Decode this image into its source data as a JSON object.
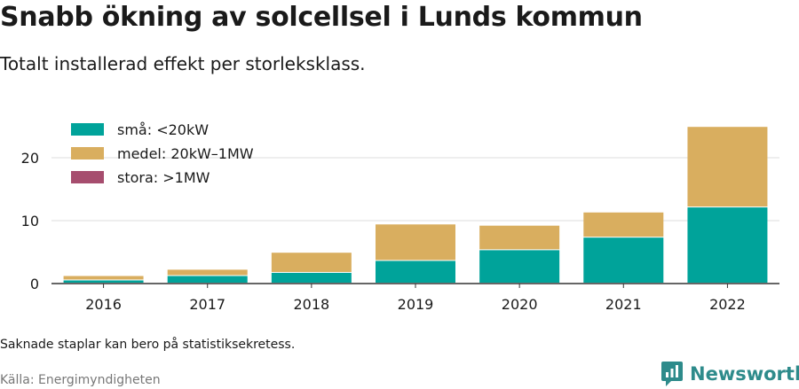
{
  "title": "Snabb ökning av solcellsel i Lunds kommun",
  "subtitle": "Totalt installerad effekt per storleksklass.",
  "note": "Saknade staplar kan bero på statistiksekretess.",
  "source": "Källa: Energimyndigheten",
  "brand": {
    "name": "Newsworthy",
    "icon": "newsworthy-logo-icon",
    "color": "#2e8b8b"
  },
  "chart_data": {
    "type": "bar",
    "stacked": true,
    "categories": [
      "2016",
      "2017",
      "2018",
      "2019",
      "2020",
      "2021",
      "2022"
    ],
    "series": [
      {
        "name": "små: <20kW",
        "color": "#00a39a",
        "values": [
          0.5,
          1.2,
          1.7,
          3.6,
          5.3,
          7.3,
          12.1
        ]
      },
      {
        "name": "medel: 20kW–1MW",
        "color": "#d9ae5f",
        "values": [
          0.7,
          1.0,
          3.2,
          5.8,
          3.9,
          4.0,
          12.8
        ]
      },
      {
        "name": "stora: >1MW",
        "color": "#a64d6e",
        "values": [
          0,
          0,
          0,
          0,
          0,
          0,
          0
        ]
      }
    ],
    "yticks": [
      0,
      10,
      20
    ],
    "ylim": [
      0,
      25
    ],
    "xlabel": "",
    "ylabel": "",
    "grid": true,
    "legend": "top-left"
  }
}
